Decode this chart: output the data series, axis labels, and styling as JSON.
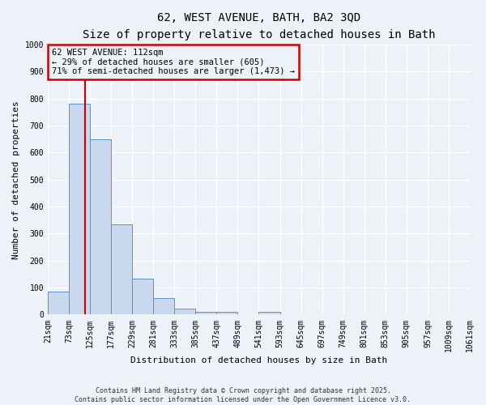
{
  "title_line1": "62, WEST AVENUE, BATH, BA2 3QD",
  "title_line2": "Size of property relative to detached houses in Bath",
  "xlabel": "Distribution of detached houses by size in Bath",
  "ylabel": "Number of detached properties",
  "categories": [
    "21sqm",
    "73sqm",
    "125sqm",
    "177sqm",
    "229sqm",
    "281sqm",
    "333sqm",
    "385sqm",
    "437sqm",
    "489sqm",
    "541sqm",
    "593sqm",
    "645sqm",
    "697sqm",
    "749sqm",
    "801sqm",
    "853sqm",
    "905sqm",
    "957sqm",
    "1009sqm",
    "1061sqm"
  ],
  "bar_values": [
    85,
    780,
    648,
    335,
    133,
    60,
    22,
    10,
    10,
    0,
    10,
    0,
    0,
    0,
    0,
    0,
    0,
    0,
    0,
    0
  ],
  "bar_color": "#c8d8ee",
  "bar_edge_color": "#6090c0",
  "annotation_title": "62 WEST AVENUE: 112sqm",
  "annotation_line2": "← 29% of detached houses are smaller (605)",
  "annotation_line3": "71% of semi-detached houses are larger (1,473) →",
  "annotation_box_color": "#cc0000",
  "ylim": [
    0,
    1000
  ],
  "yticks": [
    0,
    100,
    200,
    300,
    400,
    500,
    600,
    700,
    800,
    900,
    1000
  ],
  "footer_line1": "Contains HM Land Registry data © Crown copyright and database right 2025.",
  "footer_line2": "Contains public sector information licensed under the Open Government Licence v3.0.",
  "bg_color": "#edf2f9",
  "grid_color": "#ffffff",
  "title_fontsize": 10,
  "subtitle_fontsize": 9,
  "axis_label_fontsize": 8,
  "tick_fontsize": 7,
  "footer_fontsize": 6
}
